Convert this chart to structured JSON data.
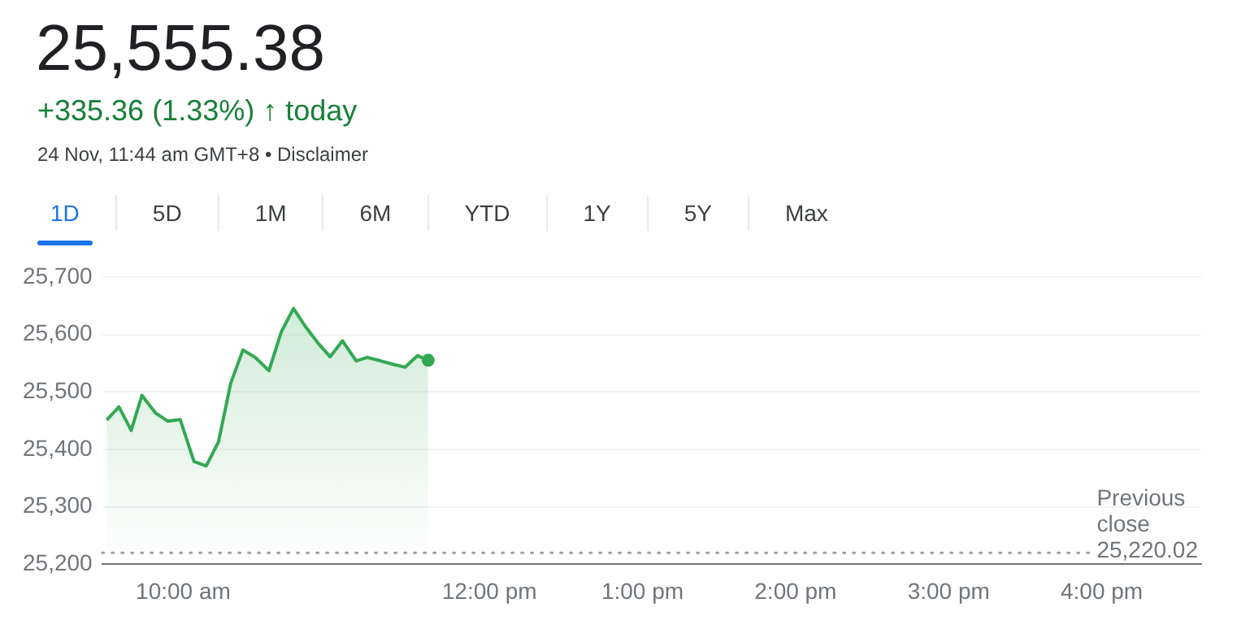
{
  "chart_data": {
    "type": "area",
    "title": "25,555.38",
    "subtitle": "+335.36 (1.33%) ↑ today",
    "annotations": [
      "24 Nov, 11:44 am GMT+8 • Disclaimer",
      "1D",
      "5D",
      "1M",
      "6M",
      "YTD",
      "1Y",
      "5Y",
      "Max"
    ],
    "x": [
      9.5,
      9.58,
      9.66,
      9.73,
      9.82,
      9.9,
      9.98,
      10.07,
      10.15,
      10.23,
      10.31,
      10.39,
      10.47,
      10.56,
      10.64,
      10.72,
      10.8,
      10.88,
      10.96,
      11.04,
      11.13,
      11.2,
      11.29,
      11.37,
      11.45,
      11.53,
      11.6
    ],
    "series": [
      {
        "color": "#34a853",
        "values": [
          25451,
          25474,
          25433,
          25494,
          25463,
          25449,
          25452,
          25379,
          25371,
          25413,
          25515,
          25573,
          25560,
          25537,
          25604,
          25645,
          25613,
          25585,
          25561,
          25589,
          25554,
          25560,
          25554,
          25548,
          25543,
          25563,
          25555
        ]
      }
    ],
    "xlim": [
      9.47,
      16.65
    ],
    "xticks": [
      {
        "value": 10,
        "label": "10:00 am"
      },
      {
        "value": 12,
        "label": "12:00 pm"
      },
      {
        "value": 13,
        "label": "1:00 pm"
      },
      {
        "value": 14,
        "label": "2:00 pm"
      },
      {
        "value": 15,
        "label": "3:00 pm"
      },
      {
        "value": 16,
        "label": "4:00 pm"
      }
    ],
    "ylim": [
      25200,
      25700
    ],
    "yticks": [
      {
        "value": 25200,
        "label": "25,200"
      },
      {
        "value": 25300,
        "label": "25,300"
      },
      {
        "value": 25400,
        "label": "25,400"
      },
      {
        "value": 25500,
        "label": "25,500"
      },
      {
        "value": 25600,
        "label": "25,600"
      },
      {
        "value": 25700,
        "label": "25,700"
      }
    ],
    "ref_lines": [
      {
        "axis": "y",
        "value": 25220.02,
        "label": "Previous close 25,220.02",
        "color": "#9aa0a6",
        "line_style": "dotted"
      }
    ],
    "grid": "y",
    "marker": "none",
    "line_style": "solid",
    "legend": false
  }
}
